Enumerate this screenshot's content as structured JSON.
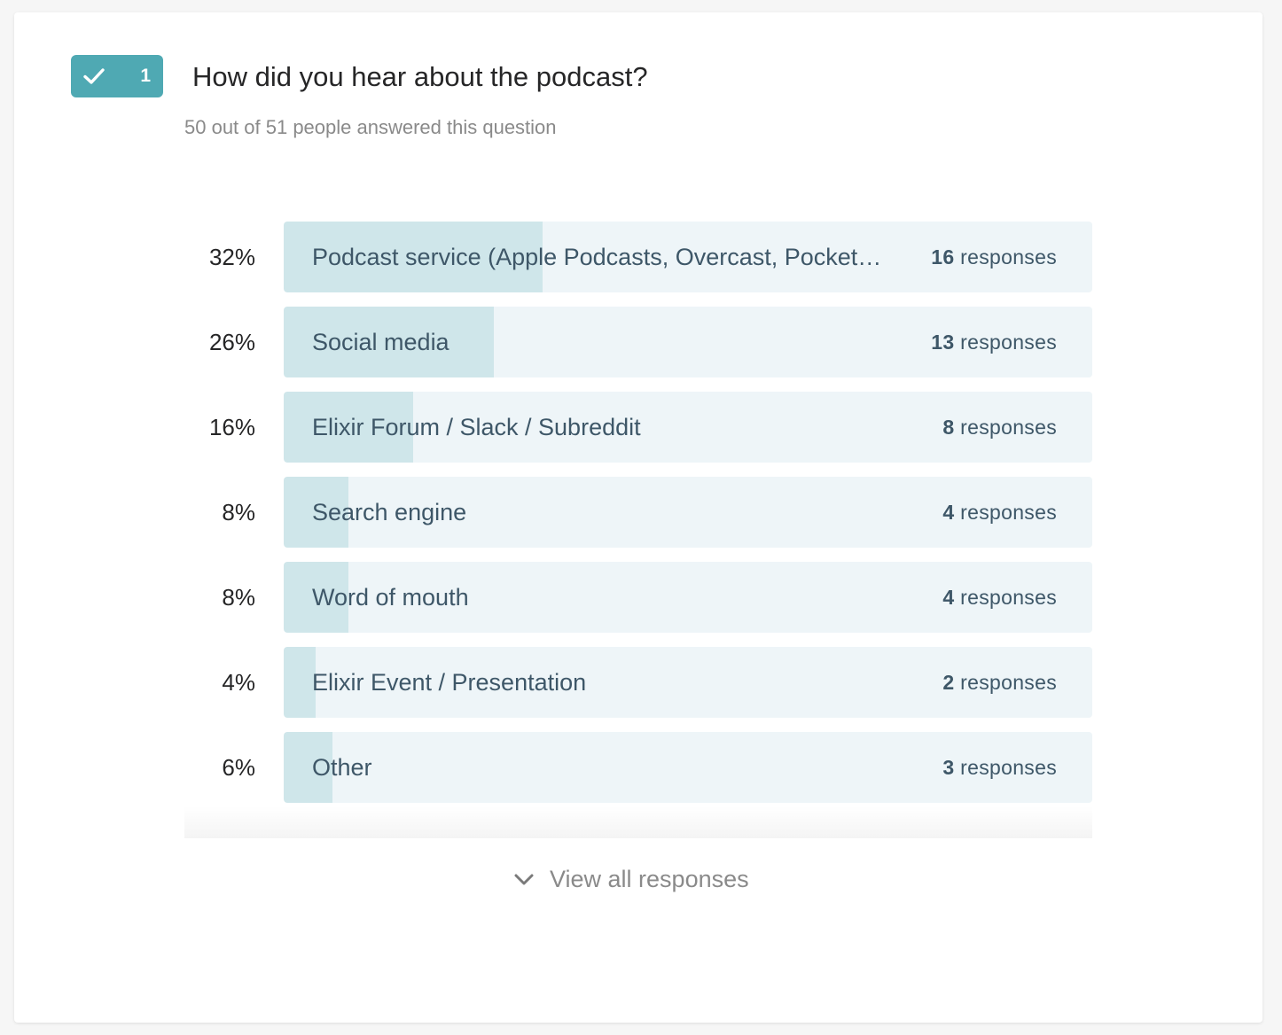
{
  "question": {
    "number": "1",
    "title": "How did you hear about the podcast?",
    "subtitle": "50 out of 51 people answered this question",
    "badge_color": "#4fa9b3"
  },
  "icons": {
    "badge": "checkmark-icon",
    "view_all": "chevron-down-icon"
  },
  "chart_data": {
    "type": "bar",
    "orientation": "horizontal",
    "bar_fill_color": "#cfe6ea",
    "track_color": "#eef5f8",
    "categories": [
      "Podcast service (Apple Podcasts, Overcast, Pocket…",
      "Social media",
      "Elixir Forum / Slack / Subreddit",
      "Search engine",
      "Word of mouth",
      "Elixir Event / Presentation",
      "Other"
    ],
    "values": [
      32,
      26,
      16,
      8,
      8,
      4,
      6
    ],
    "counts": [
      16,
      13,
      8,
      4,
      4,
      2,
      3
    ],
    "percent_labels": [
      "32%",
      "26%",
      "16%",
      "8%",
      "8%",
      "4%",
      "6%"
    ],
    "count_suffix": "responses"
  },
  "footer": {
    "view_all_label": "View all responses"
  }
}
